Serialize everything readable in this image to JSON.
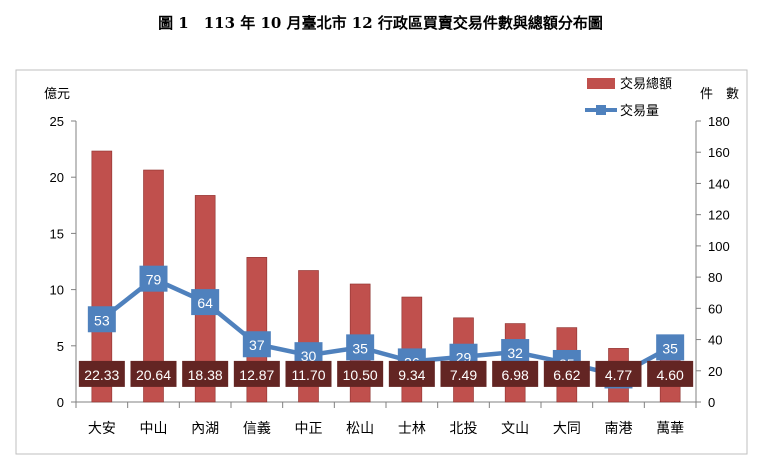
{
  "title": "圖 1　113 年 10 月臺北市 12 行政區買賣交易件數與總額分布圖",
  "colors": {
    "bar": "#c0504d",
    "bar_edge": "#8c2f2c",
    "line": "#4f81bd",
    "count_box": "#4f81bd",
    "amount_box": "#632523",
    "grid": "#c8c8c8"
  },
  "chart_data": {
    "type": "bar",
    "categories": [
      "大安",
      "中山",
      "內湖",
      "信義",
      "中正",
      "松山",
      "士林",
      "北投",
      "文山",
      "大同",
      "南港",
      "萬華"
    ],
    "series": [
      {
        "name": "交易總額",
        "type": "bar",
        "axis": "left",
        "values": [
          22.33,
          20.64,
          18.38,
          12.87,
          11.7,
          10.5,
          9.34,
          7.49,
          6.98,
          6.62,
          4.77,
          4.6
        ],
        "labels": [
          "22.33",
          "20.64",
          "18.38",
          "12.87",
          "11.70",
          "10.50",
          "9.34",
          "7.49",
          "6.98",
          "6.62",
          "4.77",
          "4.60"
        ]
      },
      {
        "name": "交易量",
        "type": "line",
        "axis": "right",
        "values": [
          53,
          79,
          64,
          37,
          30,
          35,
          26,
          29,
          32,
          25,
          17,
          35
        ],
        "labels": [
          "53",
          "79",
          "64",
          "37",
          "30",
          "35",
          "26",
          "29",
          "32",
          "25",
          "17",
          "35"
        ]
      }
    ],
    "ylabel_left": "億元",
    "ylabel_right": "件　數",
    "ylim_left": [
      0,
      25
    ],
    "yticks_left": [
      "0",
      "5",
      "10",
      "15",
      "20",
      "25"
    ],
    "ylim_right": [
      0,
      180
    ],
    "yticks_right": [
      "0",
      "20",
      "40",
      "60",
      "80",
      "100",
      "120",
      "140",
      "160",
      "180"
    ],
    "grid": false,
    "legend_position": "top-right"
  }
}
